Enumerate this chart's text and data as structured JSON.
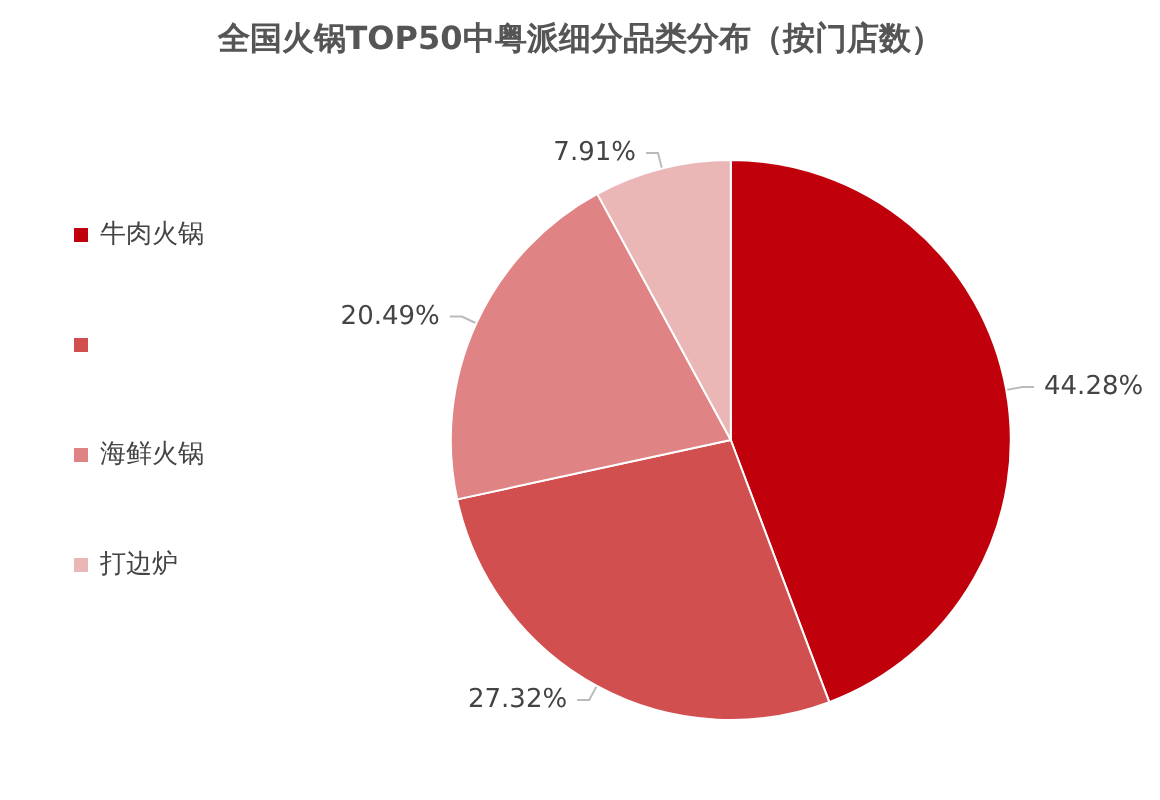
{
  "chart_data": {
    "type": "pie",
    "title": "全国火锅TOP50中粤派细分品类分布（按门店数）",
    "categories": [
      "牛肉火锅",
      null,
      "海鲜火锅",
      "打边炉"
    ],
    "values": [
      44.28,
      27.32,
      20.49,
      7.91
    ],
    "value_labels": [
      "44.28%",
      "27.32%",
      "20.49%",
      "7.91%"
    ],
    "colors": [
      "#c0000b",
      "#d24f4f",
      "#e08384",
      "#eab6b6"
    ],
    "legend": "left"
  }
}
